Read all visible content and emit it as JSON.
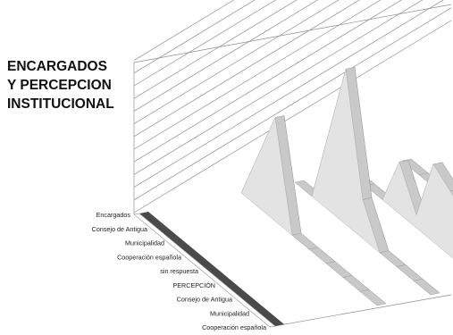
{
  "title_lines": [
    "ENCARGADOS",
    "Y PERCEPCION",
    "INSTITUCIONAL"
  ],
  "colors": {
    "face": "#e3e3e3",
    "side": "#9c9c9c",
    "top": "#c9c9c9",
    "dark_band": "#4a4a4a",
    "grid": "#8f8f8f",
    "label": "#222222"
  },
  "chart_data": {
    "type": "area",
    "style": "3d-stacked-ribbons",
    "title": "ENCARGADOS Y PERCEPCION INSTITUCIONAL",
    "categories": [
      "Encargados",
      "Consejo de Antigua",
      "Municipalidad",
      "Cooperación española",
      "sin respuesta",
      "PERCEPCIÓN",
      "Consejo de Antigua",
      "Municipalidad",
      "Cooperación española"
    ],
    "series_depth_count": 6,
    "ribbons": [
      {
        "depth": 0,
        "values": [
          0,
          0,
          0,
          0,
          0,
          0,
          0,
          0,
          0
        ]
      },
      {
        "depth": 1,
        "values": [
          0,
          0,
          0,
          0,
          0,
          0,
          0,
          0,
          0
        ]
      },
      {
        "depth": 2,
        "values": [
          0,
          4,
          8,
          0,
          0,
          0,
          0,
          0,
          0
        ]
      },
      {
        "depth": 3,
        "values": [
          0,
          0,
          6,
          12,
          3,
          0,
          0,
          0,
          0
        ]
      },
      {
        "depth": 4,
        "values": [
          0,
          0,
          0,
          4,
          1,
          6,
          5,
          4,
          3
        ]
      },
      {
        "depth": 5,
        "values": [
          0,
          0,
          0,
          0,
          0,
          0,
          2,
          2,
          2
        ]
      }
    ],
    "grid": true,
    "legend": "none"
  }
}
